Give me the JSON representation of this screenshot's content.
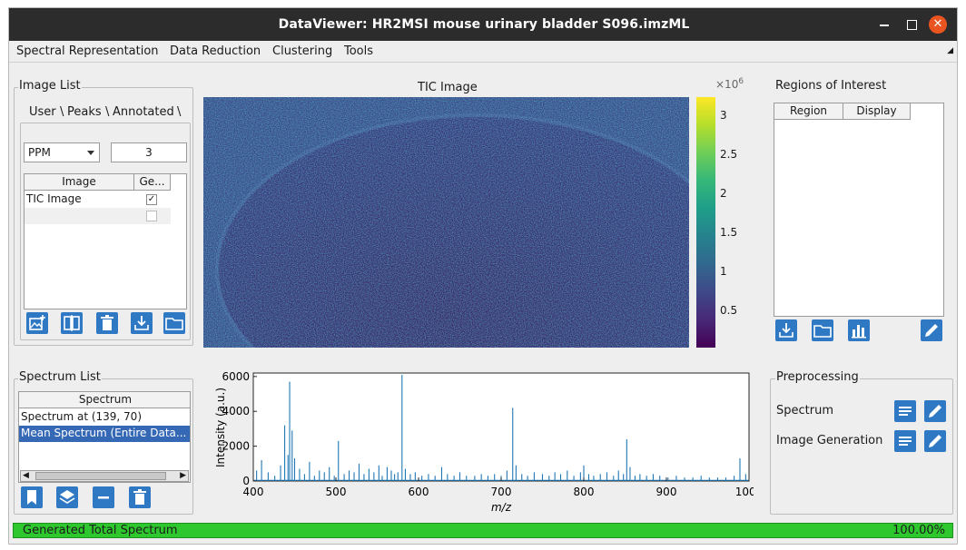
{
  "window": {
    "title": "DataViewer: HR2MSI mouse urinary bladder S096.imzML"
  },
  "menu": [
    "Spectral Representation",
    "Data Reduction",
    "Clustering",
    "Tools"
  ],
  "image_list": {
    "title": "Image List",
    "tabs": [
      "User",
      "Peaks",
      "Annotated"
    ],
    "unit": "PPM",
    "tolerance": "3",
    "columns": [
      "Image",
      "Ge..."
    ],
    "rows": [
      {
        "name": "TIC Image",
        "checked": true
      },
      {
        "name": "",
        "checked": false
      }
    ]
  },
  "tic": {
    "title": "TIC Image",
    "colorbar_exponent": "×10",
    "colorbar_exponent_sup": "6",
    "colorbar_ticks": [
      "3",
      "2.5",
      "2",
      "1.5",
      "1",
      "0.5"
    ]
  },
  "roi": {
    "title": "Regions of Interest",
    "columns": [
      "Region",
      "Display"
    ]
  },
  "spectrum_list": {
    "title": "Spectrum List",
    "column": "Spectrum",
    "items": [
      "Spectrum at (139, 70)",
      "Mean Spectrum (Entire Data..."
    ]
  },
  "preprocessing": {
    "title": "Preprocessing",
    "items": [
      "Spectrum",
      "Image Generation"
    ]
  },
  "status": {
    "message": "Generated Total Spectrum",
    "percent": "100.00%",
    "progress": 1.0
  },
  "colors": {
    "accent": "#2e78c4",
    "progress": "#2ec82e",
    "titlebar": "#2c2c2c",
    "close": "#e95420",
    "line": "#1f77b4"
  },
  "chart_data": {
    "type": "line",
    "xlabel": "m/z",
    "ylabel": "Intensity (a.u.)",
    "xlim": [
      400,
      1000
    ],
    "ylim": [
      0,
      6200
    ],
    "xticks": [
      "400",
      "500",
      "600",
      "700",
      "800",
      "900",
      "1000"
    ],
    "yticks": [
      "0",
      "2000",
      "4000",
      "6000"
    ],
    "peaks": [
      [
        404,
        600
      ],
      [
        410,
        1200
      ],
      [
        418,
        500
      ],
      [
        426,
        300
      ],
      [
        433,
        900
      ],
      [
        438,
        3200
      ],
      [
        442,
        1500
      ],
      [
        444,
        5700
      ],
      [
        447,
        2900
      ],
      [
        450,
        1300
      ],
      [
        456,
        700
      ],
      [
        462,
        400
      ],
      [
        468,
        1100
      ],
      [
        474,
        300
      ],
      [
        480,
        600
      ],
      [
        486,
        500
      ],
      [
        492,
        800
      ],
      [
        498,
        300
      ],
      [
        503,
        2300
      ],
      [
        510,
        400
      ],
      [
        516,
        600
      ],
      [
        522,
        500
      ],
      [
        528,
        1000
      ],
      [
        534,
        400
      ],
      [
        540,
        700
      ],
      [
        546,
        500
      ],
      [
        552,
        900
      ],
      [
        556,
        300
      ],
      [
        562,
        800
      ],
      [
        567,
        600
      ],
      [
        571,
        400
      ],
      [
        575,
        500
      ],
      [
        580,
        6100
      ],
      [
        584,
        700
      ],
      [
        590,
        400
      ],
      [
        596,
        500
      ],
      [
        604,
        300
      ],
      [
        612,
        400
      ],
      [
        620,
        300
      ],
      [
        628,
        800
      ],
      [
        635,
        400
      ],
      [
        643,
        300
      ],
      [
        650,
        500
      ],
      [
        658,
        300
      ],
      [
        668,
        300
      ],
      [
        676,
        400
      ],
      [
        684,
        300
      ],
      [
        692,
        400
      ],
      [
        700,
        300
      ],
      [
        707,
        600
      ],
      [
        714,
        4200
      ],
      [
        718,
        900
      ],
      [
        725,
        400
      ],
      [
        732,
        300
      ],
      [
        740,
        500
      ],
      [
        750,
        400
      ],
      [
        758,
        300
      ],
      [
        765,
        500
      ],
      [
        772,
        400
      ],
      [
        780,
        600
      ],
      [
        788,
        300
      ],
      [
        796,
        500
      ],
      [
        800,
        900
      ],
      [
        806,
        400
      ],
      [
        812,
        300
      ],
      [
        820,
        400
      ],
      [
        828,
        500
      ],
      [
        836,
        300
      ],
      [
        842,
        600
      ],
      [
        848,
        400
      ],
      [
        852,
        2400
      ],
      [
        856,
        800
      ],
      [
        862,
        300
      ],
      [
        868,
        400
      ],
      [
        876,
        300
      ],
      [
        884,
        400
      ],
      [
        892,
        300
      ],
      [
        902,
        200
      ],
      [
        912,
        300
      ],
      [
        922,
        200
      ],
      [
        932,
        200
      ],
      [
        942,
        300
      ],
      [
        952,
        200
      ],
      [
        962,
        200
      ],
      [
        972,
        200
      ],
      [
        982,
        300
      ],
      [
        989,
        1300
      ],
      [
        996,
        400
      ]
    ]
  }
}
